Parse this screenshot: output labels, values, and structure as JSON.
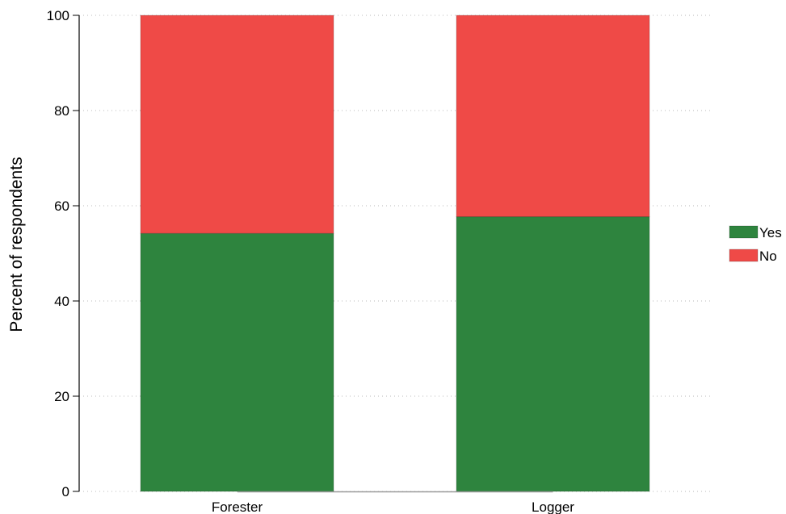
{
  "chart_data": {
    "type": "bar",
    "stacked": true,
    "categories": [
      "Forester",
      "Logger"
    ],
    "series": [
      {
        "name": "Yes",
        "values": [
          54.2,
          57.7
        ],
        "color": "#2e843e"
      },
      {
        "name": "No",
        "values": [
          45.8,
          42.3
        ],
        "color": "#ef4a47"
      }
    ],
    "xlabel": "",
    "ylabel": "Percent of respondents",
    "ylim": [
      0,
      100
    ],
    "yticks": [
      0,
      20,
      40,
      60,
      80,
      100
    ],
    "grid": true,
    "legend_position": "right"
  }
}
